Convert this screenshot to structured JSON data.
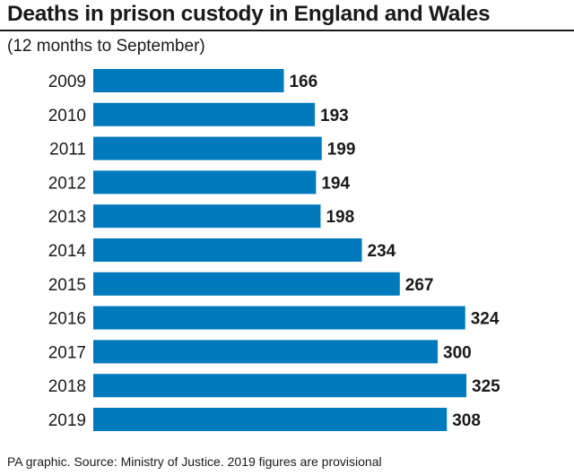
{
  "chart_data": {
    "type": "bar",
    "orientation": "horizontal",
    "title": "Deaths in prison custody in England and Wales",
    "subtitle": "(12 months to September)",
    "categories": [
      "2009",
      "2010",
      "2011",
      "2012",
      "2013",
      "2014",
      "2015",
      "2016",
      "2017",
      "2018",
      "2019"
    ],
    "values": [
      166,
      193,
      199,
      194,
      198,
      234,
      267,
      324,
      300,
      325,
      308
    ],
    "value_labels": [
      "166",
      "193",
      "199",
      "194",
      "198",
      "234",
      "267",
      "324",
      "300",
      "325",
      "308"
    ],
    "xlim": [
      0,
      325
    ],
    "bar_color": "#0079bd",
    "grid": false,
    "legend": "none"
  },
  "footer": "PA graphic. Source: Ministry of Justice. 2019 figures are provisional"
}
